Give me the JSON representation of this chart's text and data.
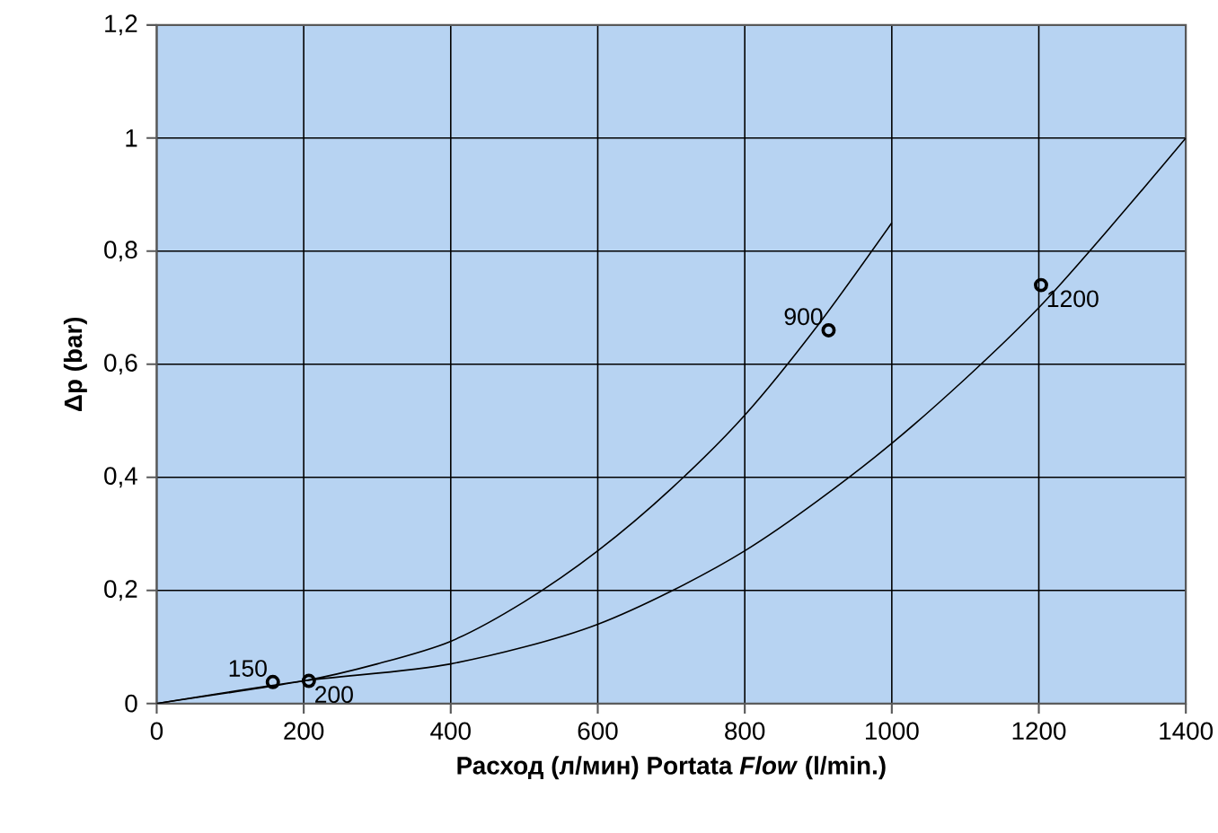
{
  "chart_data": {
    "type": "line",
    "xlabel": "Расход (л/мин) Portata *Flow* (l/min.)",
    "ylabel": "Δp (bar)",
    "xlim": [
      0,
      1400
    ],
    "xticks": [
      0,
      200,
      400,
      600,
      800,
      1000,
      1200,
      1400
    ],
    "ylim": [
      0,
      1.2
    ],
    "yticks": [
      0,
      {
        "value": 0.2,
        "label": "0,2"
      },
      {
        "value": 0.4,
        "label": "0,4"
      },
      {
        "value": 0.6,
        "label": "0,6"
      },
      {
        "value": 0.8,
        "label": "0,8"
      },
      1,
      {
        "value": 1.2,
        "label": "1,2"
      }
    ],
    "grid": true,
    "line_style": "solid",
    "series": [
      {
        "color": "#000000",
        "x": [
          0,
          200,
          300,
          400,
          500,
          600,
          700,
          800,
          900,
          1000
        ],
        "values": [
          0,
          0.04,
          0.07,
          0.11,
          0.18,
          0.27,
          0.38,
          0.51,
          0.67,
          0.85
        ]
      },
      {
        "color": "#000000",
        "x": [
          0,
          200,
          400,
          600,
          800,
          1000,
          1200,
          1400
        ],
        "values": [
          0,
          0.04,
          0.07,
          0.14,
          0.27,
          0.46,
          0.7,
          1.0
        ]
      },
      {
        "type": "scatter",
        "marker": "circle",
        "color": "#000000",
        "x": [
          158,
          207,
          914,
          1203
        ],
        "values": [
          0.038,
          0.04,
          0.66,
          0.74
        ]
      }
    ],
    "annotations": [
      {
        "text": "150",
        "x": 158,
        "y": 0.038
      },
      {
        "text": "200",
        "x": 207,
        "y": 0.04
      },
      {
        "text": "900",
        "x": 914,
        "y": 0.66
      },
      {
        "text": "1200",
        "x": 1203,
        "y": 0.74
      }
    ]
  }
}
